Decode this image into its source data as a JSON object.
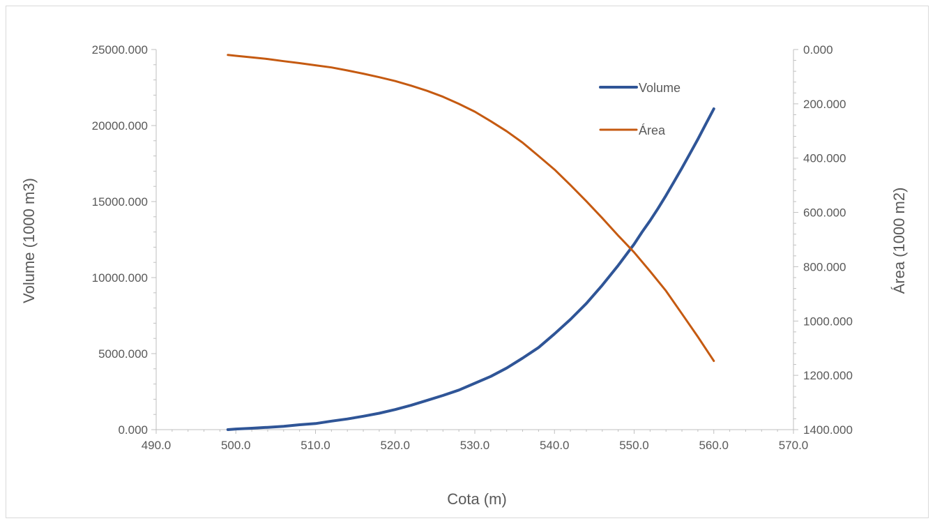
{
  "chart_data": {
    "type": "line",
    "xlabel": "Cota (m)",
    "ylabel": "Volume (1000 m3)",
    "y2label": "Área (1000 m2)",
    "xlim": [
      490,
      570
    ],
    "ylim": [
      0,
      25000
    ],
    "y2lim": [
      0,
      1400
    ],
    "y2_reversed": true,
    "x_ticks": [
      "490.0",
      "500.0",
      "510.0",
      "520.0",
      "530.0",
      "540.0",
      "550.0",
      "560.0",
      "570.0"
    ],
    "y_ticks": [
      "0.000",
      "5000.000",
      "10000.000",
      "15000.000",
      "20000.000",
      "25000.000"
    ],
    "y2_ticks": [
      "0.000",
      "200.000",
      "400.000",
      "600.000",
      "800.000",
      "1000.000",
      "1200.000",
      "1400.000"
    ],
    "legend_position": "top-right",
    "grid": false,
    "series": [
      {
        "name": "Volume",
        "axis": "left",
        "color": "#2f5597",
        "x": [
          499,
          500,
          502,
          504,
          506,
          508,
          510,
          512,
          514,
          516,
          518,
          520,
          522,
          524,
          526,
          528,
          530,
          532,
          534,
          536,
          538,
          540,
          542,
          544,
          546,
          548,
          550,
          551,
          552,
          553,
          554,
          555,
          556,
          557,
          558,
          559,
          560
        ],
        "y": [
          0,
          40,
          90,
          150,
          220,
          320,
          400,
          560,
          700,
          880,
          1080,
          1320,
          1600,
          1920,
          2250,
          2600,
          3050,
          3500,
          4050,
          4700,
          5400,
          6300,
          7250,
          8300,
          9500,
          10800,
          12200,
          13000,
          13750,
          14550,
          15400,
          16300,
          17200,
          18150,
          19100,
          20100,
          21100
        ]
      },
      {
        "name": "Área",
        "axis": "right",
        "color": "#c55a11",
        "x": [
          499,
          500,
          502,
          504,
          506,
          508,
          510,
          512,
          514,
          516,
          518,
          520,
          522,
          524,
          526,
          528,
          530,
          532,
          534,
          536,
          538,
          540,
          542,
          544,
          546,
          548,
          550,
          552,
          554,
          556,
          558,
          560
        ],
        "y": [
          20,
          23,
          29,
          35,
          43,
          50,
          58,
          66,
          77,
          89,
          102,
          116,
          133,
          152,
          174,
          200,
          229,
          264,
          301,
          343,
          392,
          442,
          499,
          559,
          621,
          685,
          747,
          817,
          889,
          973,
          1058,
          1147
        ]
      }
    ]
  }
}
